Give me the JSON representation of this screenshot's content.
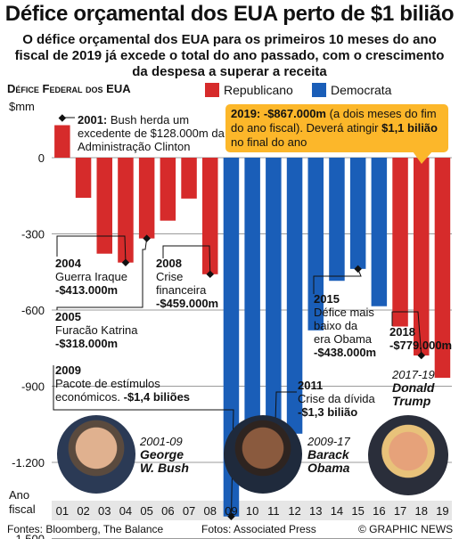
{
  "title": "Défice orçamental dos EUA perto de $1 bilião",
  "subtitle": "O défice orçamental dos EUA para os primeiros 10 meses do ano fiscal de 2019 já excede o total do ano passado, com o crescimento da despesa a superar a receita",
  "chart_heading": "Défice Federal dos EUA",
  "legend": [
    {
      "label": "Republicano",
      "color": "#d62b2b"
    },
    {
      "label": "Democrata",
      "color": "#1a5eb8"
    }
  ],
  "chart_data": {
    "type": "bar",
    "ylabel": "$mm",
    "xlabel": "Ano fiscal",
    "ylim": [
      -1600,
      200
    ],
    "yticks": [
      0,
      -300,
      -600,
      -900,
      -1200,
      -1500
    ],
    "ytick_labels": [
      "0",
      "-300",
      "-600",
      "-900",
      "-1.200",
      "-1.500"
    ],
    "categories": [
      "01",
      "02",
      "03",
      "04",
      "05",
      "06",
      "07",
      "08",
      "09",
      "10",
      "11",
      "12",
      "13",
      "14",
      "15",
      "16",
      "17",
      "18",
      "19"
    ],
    "values": [
      128,
      -158,
      -378,
      -413,
      -318,
      -248,
      -161,
      -459,
      -1413,
      -1294,
      -1300,
      -1087,
      -680,
      -485,
      -438,
      -585,
      -665,
      -779,
      -867
    ],
    "party": [
      "R",
      "R",
      "R",
      "R",
      "R",
      "R",
      "R",
      "R",
      "D",
      "D",
      "D",
      "D",
      "D",
      "D",
      "D",
      "D",
      "R",
      "R",
      "R"
    ]
  },
  "annotations": {
    "a2001": {
      "year": "2001:",
      "text": "Bush herda um excedente de $128.000m da Administração Clinton"
    },
    "a2004": {
      "year": "2004",
      "text": "Guerra Iraque",
      "value": "-$413.000m"
    },
    "a2005": {
      "year": "2005",
      "text": "Furacão Katrina",
      "value": "-$318.000m"
    },
    "a2008": {
      "year": "2008",
      "text1": "Crise",
      "text2": "financeira",
      "value": "-$459.000m"
    },
    "a2009": {
      "year": "2009",
      "text": "Pacote de estímulos económicos.",
      "value": "-$1,4 biliões"
    },
    "a2011": {
      "year": "2011",
      "text": "Crise da dívida",
      "value": "-$1,3 bilião"
    },
    "a2015": {
      "year": "2015",
      "text1": "Défice mais",
      "text2": "baixo da",
      "text3": "era Obama",
      "value": "-$438.000m"
    },
    "a2018": {
      "year": "2018",
      "value": "-$779.000m"
    },
    "a2019": {
      "year": "2019:",
      "value": "-$867.000m",
      "text1": "(a dois meses do fim do ano fiscal). Deverá atingir",
      "value2": "$1,1 bilião",
      "text2": "no final do ano"
    }
  },
  "presidents": [
    {
      "years": "2001-09",
      "first": "George",
      "last": "W. Bush"
    },
    {
      "years": "2009-17",
      "first": "Barack",
      "last": "Obama"
    },
    {
      "years": "2017-19",
      "first": "Donald",
      "last": "Trump"
    }
  ],
  "footer": {
    "sources": "Fontes: Bloomberg, The Balance",
    "pictures": "Fotos: Associated Press",
    "credit": "© GRAPHIC NEWS"
  },
  "colors": {
    "republican": "#d62b2b",
    "democrat": "#1a5eb8",
    "callout": "#fcb72a",
    "grid": "#7a7a7a",
    "axis_bg": "#e6e6e6"
  }
}
